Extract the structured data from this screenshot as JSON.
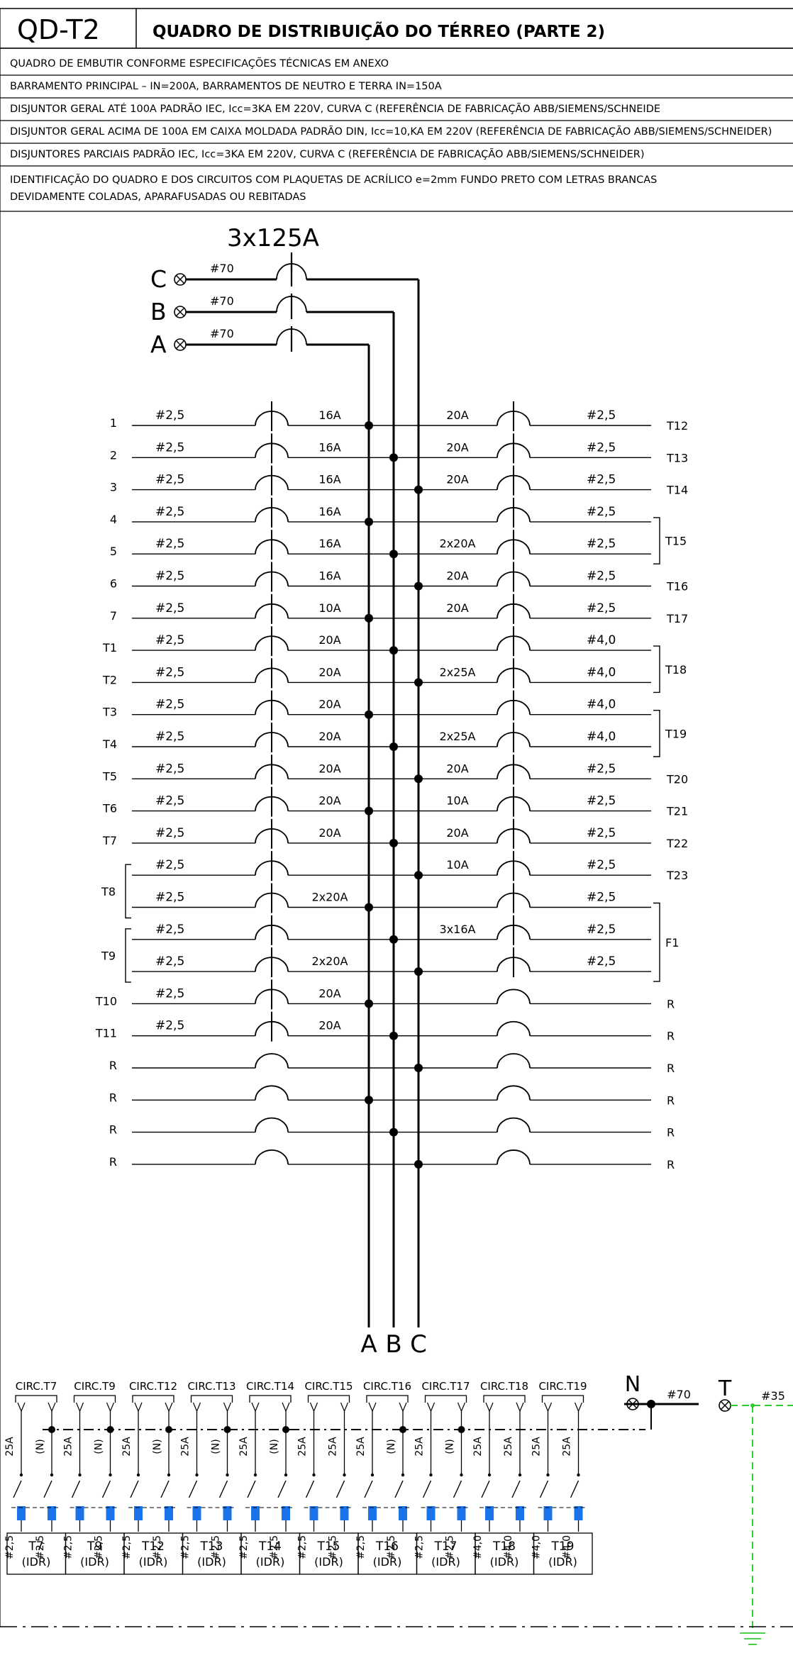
{
  "header": {
    "code": "QD-T2",
    "title": "QUADRO DE DISTRIBUIÇÃO DO TÉRREO (PARTE 2)",
    "notes": [
      "QUADRO DE EMBUTIR CONFORME ESPECIFICAÇÕES TÉCNICAS EM ANEXO",
      "BARRAMENTO PRINCIPAL – IN=200A, BARRAMENTOS DE NEUTRO E TERRA IN=150A",
      "DISJUNTOR GERAL ATÉ 100A PADRÃO IEC, Icc=3KA EM 220V, CURVA C (REFERÊNCIA DE FABRICAÇÃO ABB/SIEMENS/SCHNEIDE",
      "DISJUNTOR GERAL ACIMA DE 100A EM CAIXA MOLDADA PADRÃO DIN, Icc=10,KA EM 220V (REFERÊNCIA DE FABRICAÇÃO ABB/SIEMENS/SCHNEIDER)",
      "DISJUNTORES PARCIAIS PADRÃO IEC, Icc=3KA EM 220V, CURVA C (REFERÊNCIA DE FABRICAÇÃO ABB/SIEMENS/SCHNEIDER)",
      "IDENTIFICAÇÃO DO QUADRO E DOS CIRCUITOS COM PLAQUETAS DE ACRÍLICO e=2mm FUNDO PRETO COM LETRAS BRANCAS",
      "DEVIDAMENTE COLADAS, APARAFUSADAS OU REBITADAS"
    ]
  },
  "main_breaker": {
    "rating": "3x125A",
    "phases": [
      {
        "name": "C",
        "cable": "#70"
      },
      {
        "name": "B",
        "cable": "#70"
      },
      {
        "name": "A",
        "cable": "#70"
      }
    ],
    "bus_labels": [
      "A",
      "B",
      "C"
    ]
  },
  "left_circuits": [
    {
      "label": "1",
      "cable": "#2,5",
      "rating": "16A",
      "phase": "A"
    },
    {
      "label": "2",
      "cable": "#2,5",
      "rating": "16A",
      "phase": "B"
    },
    {
      "label": "3",
      "cable": "#2,5",
      "rating": "16A",
      "phase": "C"
    },
    {
      "label": "4",
      "cable": "#2,5",
      "rating": "16A",
      "phase": "A"
    },
    {
      "label": "5",
      "cable": "#2,5",
      "rating": "16A",
      "phase": "B"
    },
    {
      "label": "6",
      "cable": "#2,5",
      "rating": "16A",
      "phase": "C"
    },
    {
      "label": "7",
      "cable": "#2,5",
      "rating": "10A",
      "phase": "A"
    },
    {
      "label": "T1",
      "cable": "#2,5",
      "rating": "20A",
      "phase": "B"
    },
    {
      "label": "T2",
      "cable": "#2,5",
      "rating": "20A",
      "phase": "C"
    },
    {
      "label": "T3",
      "cable": "#2,5",
      "rating": "20A",
      "phase": "A"
    },
    {
      "label": "T4",
      "cable": "#2,5",
      "rating": "20A",
      "phase": "B"
    },
    {
      "label": "T5",
      "cable": "#2,5",
      "rating": "20A",
      "phase": "C"
    },
    {
      "label": "T6",
      "cable": "#2,5",
      "rating": "20A",
      "phase": "A"
    },
    {
      "label": "T7",
      "cable": "#2,5",
      "rating": "20A",
      "phase": "B"
    },
    {
      "label": "",
      "cable": "#2,5",
      "rating": "",
      "phase": "C"
    },
    {
      "label": "",
      "cable": "#2,5",
      "rating": "2x20A",
      "phase": "A"
    },
    {
      "label": "",
      "cable": "#2,5",
      "rating": "",
      "phase": "B"
    },
    {
      "label": "",
      "cable": "#2,5",
      "rating": "2x20A",
      "phase": "C"
    },
    {
      "label": "T10",
      "cable": "#2,5",
      "rating": "20A",
      "phase": "A"
    },
    {
      "label": "T11",
      "cable": "#2,5",
      "rating": "20A",
      "phase": "B"
    },
    {
      "label": "R",
      "cable": "",
      "rating": "",
      "phase": "C"
    },
    {
      "label": "R",
      "cable": "",
      "rating": "",
      "phase": "A"
    },
    {
      "label": "R",
      "cable": "",
      "rating": "",
      "phase": "B"
    },
    {
      "label": "R",
      "cable": "",
      "rating": "",
      "phase": "C"
    }
  ],
  "left_groups": [
    {
      "label": "T8",
      "rows": [
        14,
        15
      ]
    },
    {
      "label": "T9",
      "rows": [
        16,
        17
      ]
    }
  ],
  "right_circuits": [
    {
      "label": "T12",
      "cable": "#2,5",
      "rating": "20A",
      "phase": "A"
    },
    {
      "label": "T13",
      "cable": "#2,5",
      "rating": "20A",
      "phase": "B"
    },
    {
      "label": "T14",
      "cable": "#2,5",
      "rating": "20A",
      "phase": "C"
    },
    {
      "label": "",
      "cable": "#2,5",
      "rating": "",
      "phase": "A"
    },
    {
      "label": "",
      "cable": "#2,5",
      "rating": "2x20A",
      "phase": "B"
    },
    {
      "label": "T16",
      "cable": "#2,5",
      "rating": "20A",
      "phase": "C"
    },
    {
      "label": "T17",
      "cable": "#2,5",
      "rating": "20A",
      "phase": "A"
    },
    {
      "label": "",
      "cable": "#4,0",
      "rating": "",
      "phase": "B"
    },
    {
      "label": "",
      "cable": "#4,0",
      "rating": "2x25A",
      "phase": "C"
    },
    {
      "label": "",
      "cable": "#4,0",
      "rating": "",
      "phase": "A"
    },
    {
      "label": "",
      "cable": "#4,0",
      "rating": "2x25A",
      "phase": "B"
    },
    {
      "label": "T20",
      "cable": "#2,5",
      "rating": "20A",
      "phase": "C"
    },
    {
      "label": "T21",
      "cable": "#2,5",
      "rating": "10A",
      "phase": "A"
    },
    {
      "label": "T22",
      "cable": "#2,5",
      "rating": "20A",
      "phase": "B"
    },
    {
      "label": "T23",
      "cable": "#2,5",
      "rating": "10A",
      "phase": "C"
    },
    {
      "label": "",
      "cable": "#2,5",
      "rating": "",
      "phase": "A"
    },
    {
      "label": "",
      "cable": "#2,5",
      "rating": "3x16A",
      "phase": "B"
    },
    {
      "label": "",
      "cable": "#2,5",
      "rating": "",
      "phase": "C"
    },
    {
      "label": "R",
      "cable": "",
      "rating": "",
      "phase": "A"
    },
    {
      "label": "R",
      "cable": "",
      "rating": "",
      "phase": "B"
    },
    {
      "label": "R",
      "cable": "",
      "rating": "",
      "phase": "C"
    },
    {
      "label": "R",
      "cable": "",
      "rating": "",
      "phase": "A"
    },
    {
      "label": "R",
      "cable": "",
      "rating": "",
      "phase": "B"
    },
    {
      "label": "R",
      "cable": "",
      "rating": "",
      "phase": "C"
    }
  ],
  "right_groups": [
    {
      "label": "T15",
      "rows": [
        3,
        4
      ]
    },
    {
      "label": "T18",
      "rows": [
        7,
        8
      ]
    },
    {
      "label": "T19",
      "rows": [
        9,
        10
      ]
    },
    {
      "label": "F1",
      "rows": [
        15,
        17
      ]
    }
  ],
  "idr": {
    "neutral_label": "N",
    "neutral_cable": "#70",
    "earth_label": "T",
    "earth_cable": "#35",
    "units": [
      {
        "circ": "CIRC.T7",
        "name": "T7",
        "type": "(IDR)",
        "ratings": [
          "25A",
          "(N)"
        ],
        "cables": [
          "#2,5",
          "#2,5"
        ]
      },
      {
        "circ": "CIRC.T9",
        "name": "T9",
        "type": "(IDR)",
        "ratings": [
          "25A",
          "(N)"
        ],
        "cables": [
          "#2,5",
          "#2,5"
        ]
      },
      {
        "circ": "CIRC.T12",
        "name": "T12",
        "type": "(IDR)",
        "ratings": [
          "25A",
          "(N)"
        ],
        "cables": [
          "#2,5",
          "#2,5"
        ]
      },
      {
        "circ": "CIRC.T13",
        "name": "T13",
        "type": "(IDR)",
        "ratings": [
          "25A",
          "(N)"
        ],
        "cables": [
          "#2,5",
          "#2,5"
        ]
      },
      {
        "circ": "CIRC.T14",
        "name": "T14",
        "type": "(IDR)",
        "ratings": [
          "25A",
          "(N)"
        ],
        "cables": [
          "#2,5",
          "#2,5"
        ]
      },
      {
        "circ": "CIRC.T15",
        "name": "T15",
        "type": "(IDR)",
        "ratings": [
          "25A",
          "25A"
        ],
        "cables": [
          "#2,5",
          "#2,5"
        ]
      },
      {
        "circ": "CIRC.T16",
        "name": "T16",
        "type": "(IDR)",
        "ratings": [
          "25A",
          "(N)"
        ],
        "cables": [
          "#2,5",
          "#2,5"
        ]
      },
      {
        "circ": "CIRC.T17",
        "name": "T17",
        "type": "(IDR)",
        "ratings": [
          "25A",
          "(N)"
        ],
        "cables": [
          "#2,5",
          "#2,5"
        ]
      },
      {
        "circ": "CIRC.T18",
        "name": "T18",
        "type": "(IDR)",
        "ratings": [
          "25A",
          "25A"
        ],
        "cables": [
          "#4,0",
          "#4,0"
        ]
      },
      {
        "circ": "CIRC.T19",
        "name": "T19",
        "type": "(IDR)",
        "ratings": [
          "25A",
          "25A"
        ],
        "cables": [
          "#4,0",
          "#4,0"
        ]
      }
    ]
  },
  "colors": {
    "line": "#000000",
    "earth": "#33cc33",
    "contact": "#1a73e8"
  }
}
